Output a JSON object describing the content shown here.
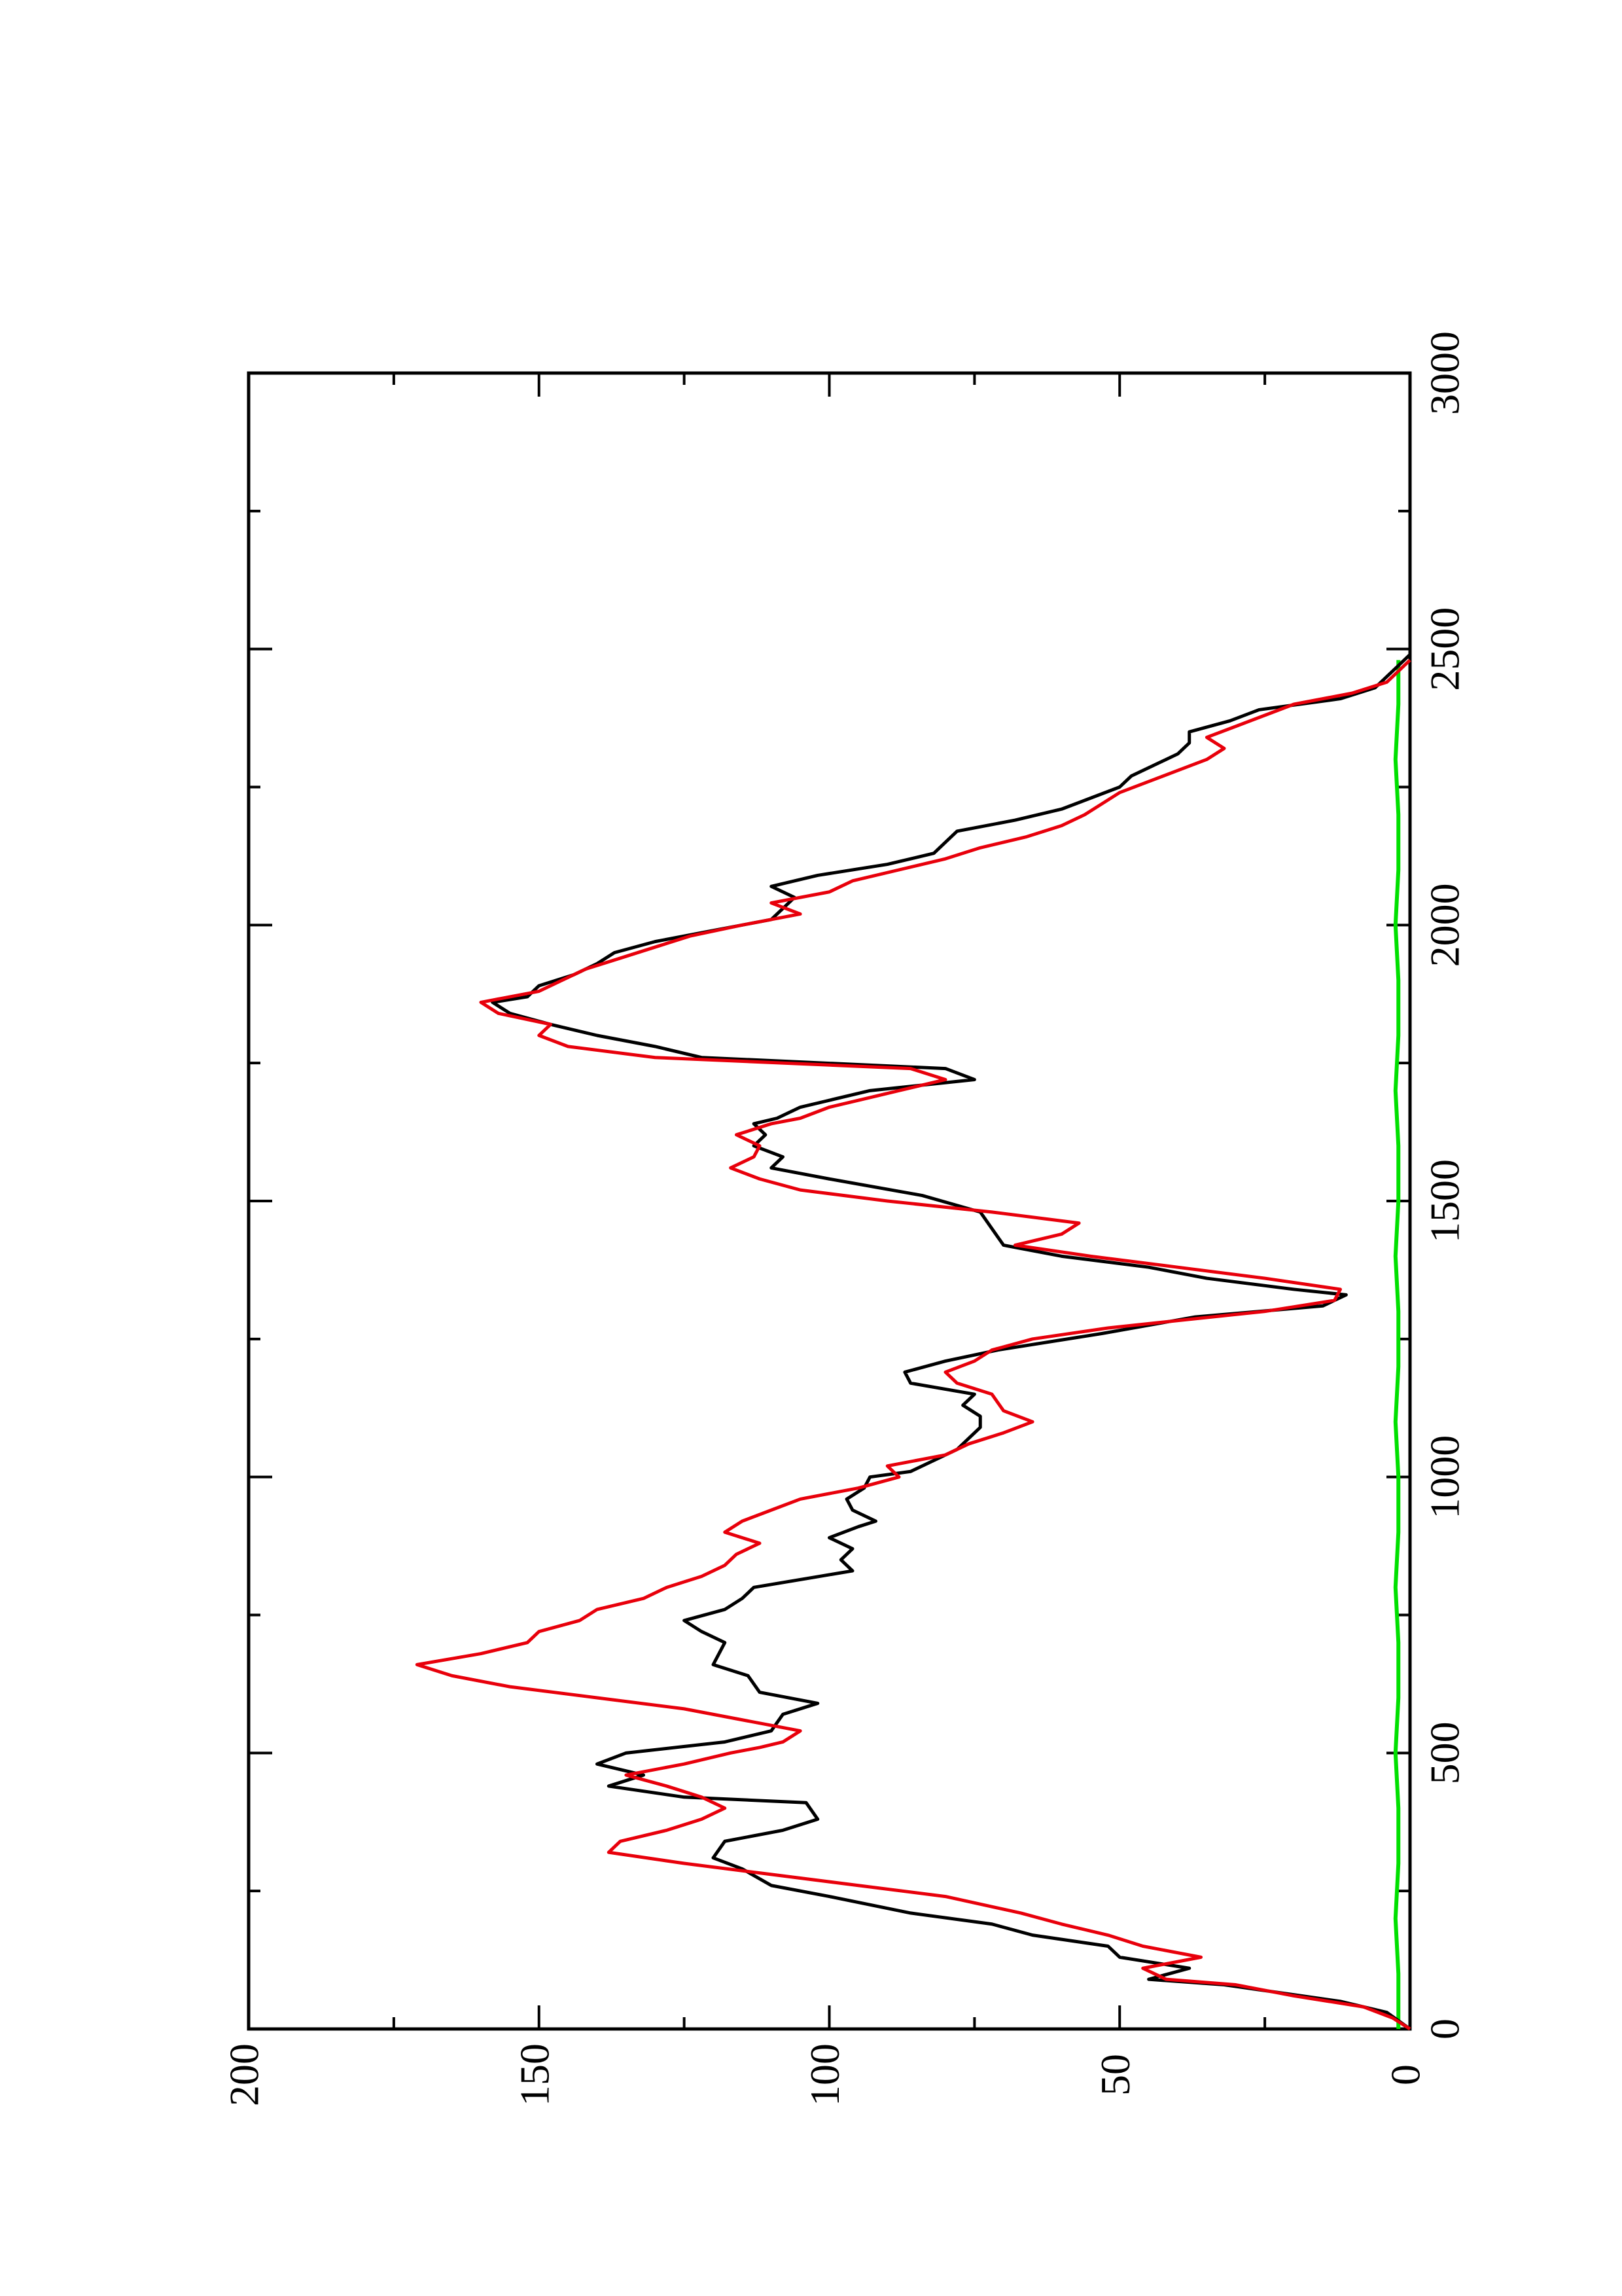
{
  "chart_data": {
    "type": "line",
    "orientation": "rotated-90-clockwise",
    "title": "",
    "xlabel": "",
    "ylabel": "",
    "xlim": [
      0,
      3000
    ],
    "ylim": [
      0,
      200
    ],
    "x_ticks": [
      0,
      500,
      1000,
      1500,
      2000,
      2500,
      3000
    ],
    "y_ticks": [
      0,
      50,
      100,
      150,
      200
    ],
    "x_tick_labels": [
      "0",
      "500",
      "1000",
      "1500",
      "2000",
      "2500",
      "3000"
    ],
    "y_tick_labels": [
      "0",
      "50",
      "100",
      "150",
      "200"
    ],
    "grid": false,
    "legend": "none",
    "series": [
      {
        "color": "#000000",
        "points": [
          [
            0,
            0
          ],
          [
            30,
            4
          ],
          [
            50,
            12
          ],
          [
            80,
            32
          ],
          [
            90,
            45
          ],
          [
            110,
            38
          ],
          [
            130,
            50
          ],
          [
            150,
            52
          ],
          [
            170,
            65
          ],
          [
            190,
            72
          ],
          [
            210,
            86
          ],
          [
            240,
            100
          ],
          [
            260,
            110
          ],
          [
            290,
            115
          ],
          [
            310,
            120
          ],
          [
            340,
            118
          ],
          [
            360,
            108
          ],
          [
            380,
            102
          ],
          [
            410,
            104
          ],
          [
            420,
            125
          ],
          [
            440,
            138
          ],
          [
            460,
            132
          ],
          [
            480,
            140
          ],
          [
            500,
            135
          ],
          [
            520,
            118
          ],
          [
            540,
            110
          ],
          [
            570,
            108
          ],
          [
            590,
            102
          ],
          [
            610,
            112
          ],
          [
            640,
            114
          ],
          [
            660,
            120
          ],
          [
            680,
            119
          ],
          [
            700,
            118
          ],
          [
            720,
            122
          ],
          [
            740,
            125
          ],
          [
            760,
            118
          ],
          [
            780,
            115
          ],
          [
            800,
            113
          ],
          [
            830,
            96
          ],
          [
            850,
            98
          ],
          [
            870,
            96
          ],
          [
            890,
            100
          ],
          [
            910,
            95
          ],
          [
            920,
            92
          ],
          [
            940,
            96
          ],
          [
            960,
            97
          ],
          [
            980,
            94
          ],
          [
            1000,
            93
          ],
          [
            1010,
            86
          ],
          [
            1030,
            82
          ],
          [
            1050,
            78
          ],
          [
            1070,
            76
          ],
          [
            1090,
            74
          ],
          [
            1110,
            74
          ],
          [
            1130,
            77
          ],
          [
            1150,
            75
          ],
          [
            1170,
            86
          ],
          [
            1190,
            87
          ],
          [
            1210,
            80
          ],
          [
            1230,
            71
          ],
          [
            1260,
            53
          ],
          [
            1290,
            37
          ],
          [
            1310,
            15
          ],
          [
            1320,
            13
          ],
          [
            1330,
            11
          ],
          [
            1340,
            20
          ],
          [
            1360,
            35
          ],
          [
            1380,
            45
          ],
          [
            1400,
            60
          ],
          [
            1420,
            70
          ],
          [
            1450,
            72
          ],
          [
            1480,
            74
          ],
          [
            1510,
            84
          ],
          [
            1540,
            100
          ],
          [
            1560,
            110
          ],
          [
            1580,
            108
          ],
          [
            1600,
            113
          ],
          [
            1620,
            111
          ],
          [
            1640,
            113
          ],
          [
            1650,
            109
          ],
          [
            1670,
            105
          ],
          [
            1700,
            93
          ],
          [
            1720,
            75
          ],
          [
            1740,
            80
          ],
          [
            1760,
            122
          ],
          [
            1780,
            130
          ],
          [
            1800,
            140
          ],
          [
            1820,
            148
          ],
          [
            1840,
            155
          ],
          [
            1860,
            158
          ],
          [
            1870,
            152
          ],
          [
            1890,
            150
          ],
          [
            1910,
            144
          ],
          [
            1930,
            140
          ],
          [
            1950,
            137
          ],
          [
            1970,
            130
          ],
          [
            1990,
            120
          ],
          [
            2010,
            110
          ],
          [
            2030,
            108
          ],
          [
            2050,
            106
          ],
          [
            2070,
            110
          ],
          [
            2090,
            102
          ],
          [
            2110,
            90
          ],
          [
            2130,
            82
          ],
          [
            2150,
            80
          ],
          [
            2170,
            78
          ],
          [
            2190,
            68
          ],
          [
            2210,
            60
          ],
          [
            2230,
            55
          ],
          [
            2250,
            50
          ],
          [
            2270,
            48
          ],
          [
            2290,
            44
          ],
          [
            2310,
            40
          ],
          [
            2330,
            38
          ],
          [
            2350,
            38
          ],
          [
            2370,
            31
          ],
          [
            2390,
            26
          ],
          [
            2410,
            12
          ],
          [
            2430,
            6
          ],
          [
            2450,
            4
          ],
          [
            2470,
            2
          ],
          [
            2490,
            0
          ]
        ]
      },
      {
        "color": "#e8000b",
        "points": [
          [
            0,
            0
          ],
          [
            20,
            3
          ],
          [
            40,
            8
          ],
          [
            60,
            20
          ],
          [
            80,
            30
          ],
          [
            90,
            42
          ],
          [
            110,
            46
          ],
          [
            130,
            36
          ],
          [
            150,
            46
          ],
          [
            170,
            52
          ],
          [
            190,
            60
          ],
          [
            210,
            67
          ],
          [
            240,
            80
          ],
          [
            260,
            95
          ],
          [
            280,
            110
          ],
          [
            300,
            125
          ],
          [
            320,
            138
          ],
          [
            340,
            136
          ],
          [
            360,
            128
          ],
          [
            380,
            122
          ],
          [
            400,
            118
          ],
          [
            420,
            122
          ],
          [
            440,
            128
          ],
          [
            460,
            135
          ],
          [
            480,
            125
          ],
          [
            500,
            117
          ],
          [
            510,
            112
          ],
          [
            520,
            108
          ],
          [
            540,
            105
          ],
          [
            560,
            115
          ],
          [
            580,
            125
          ],
          [
            600,
            140
          ],
          [
            620,
            155
          ],
          [
            640,
            165
          ],
          [
            660,
            171
          ],
          [
            680,
            160
          ],
          [
            700,
            152
          ],
          [
            720,
            150
          ],
          [
            740,
            143
          ],
          [
            760,
            140
          ],
          [
            780,
            132
          ],
          [
            800,
            128
          ],
          [
            820,
            122
          ],
          [
            840,
            118
          ],
          [
            860,
            116
          ],
          [
            880,
            112
          ],
          [
            900,
            118
          ],
          [
            920,
            115
          ],
          [
            940,
            110
          ],
          [
            960,
            105
          ],
          [
            980,
            95
          ],
          [
            1000,
            88
          ],
          [
            1020,
            90
          ],
          [
            1040,
            80
          ],
          [
            1060,
            76
          ],
          [
            1080,
            70
          ],
          [
            1100,
            65
          ],
          [
            1120,
            70
          ],
          [
            1150,
            72
          ],
          [
            1170,
            78
          ],
          [
            1190,
            80
          ],
          [
            1210,
            75
          ],
          [
            1230,
            72
          ],
          [
            1250,
            65
          ],
          [
            1270,
            52
          ],
          [
            1300,
            25
          ],
          [
            1320,
            13
          ],
          [
            1340,
            12
          ],
          [
            1360,
            25
          ],
          [
            1380,
            40
          ],
          [
            1400,
            55
          ],
          [
            1420,
            68
          ],
          [
            1440,
            60
          ],
          [
            1460,
            57
          ],
          [
            1480,
            72
          ],
          [
            1500,
            90
          ],
          [
            1520,
            105
          ],
          [
            1540,
            112
          ],
          [
            1560,
            117
          ],
          [
            1580,
            113
          ],
          [
            1600,
            112
          ],
          [
            1620,
            116
          ],
          [
            1640,
            110
          ],
          [
            1650,
            105
          ],
          [
            1670,
            100
          ],
          [
            1690,
            92
          ],
          [
            1700,
            88
          ],
          [
            1720,
            80
          ],
          [
            1740,
            86
          ],
          [
            1760,
            130
          ],
          [
            1780,
            145
          ],
          [
            1800,
            150
          ],
          [
            1820,
            148
          ],
          [
            1840,
            157
          ],
          [
            1860,
            160
          ],
          [
            1880,
            150
          ],
          [
            1900,
            146
          ],
          [
            1920,
            142
          ],
          [
            1940,
            136
          ],
          [
            1960,
            130
          ],
          [
            1980,
            124
          ],
          [
            2000,
            115
          ],
          [
            2020,
            105
          ],
          [
            2040,
            110
          ],
          [
            2060,
            100
          ],
          [
            2080,
            96
          ],
          [
            2100,
            88
          ],
          [
            2120,
            80
          ],
          [
            2140,
            74
          ],
          [
            2160,
            66
          ],
          [
            2180,
            60
          ],
          [
            2200,
            56
          ],
          [
            2220,
            53
          ],
          [
            2240,
            50
          ],
          [
            2260,
            45
          ],
          [
            2280,
            40
          ],
          [
            2300,
            35
          ],
          [
            2320,
            32
          ],
          [
            2340,
            35
          ],
          [
            2360,
            30
          ],
          [
            2380,
            25
          ],
          [
            2400,
            20
          ],
          [
            2420,
            10
          ],
          [
            2440,
            4
          ],
          [
            2460,
            2
          ],
          [
            2480,
            0
          ]
        ]
      },
      {
        "color": "#00e000",
        "points": [
          [
            0,
            2
          ],
          [
            100,
            2
          ],
          [
            200,
            2.5
          ],
          [
            300,
            2
          ],
          [
            400,
            2
          ],
          [
            500,
            2.5
          ],
          [
            600,
            2
          ],
          [
            700,
            2
          ],
          [
            800,
            2.5
          ],
          [
            900,
            2
          ],
          [
            1000,
            2
          ],
          [
            1100,
            2.5
          ],
          [
            1200,
            2
          ],
          [
            1300,
            2
          ],
          [
            1400,
            2.5
          ],
          [
            1500,
            2
          ],
          [
            1600,
            2
          ],
          [
            1700,
            2.5
          ],
          [
            1800,
            2
          ],
          [
            1900,
            2
          ],
          [
            2000,
            2.5
          ],
          [
            2100,
            2
          ],
          [
            2200,
            2
          ],
          [
            2300,
            2.5
          ],
          [
            2400,
            2
          ],
          [
            2480,
            2
          ]
        ]
      }
    ]
  }
}
